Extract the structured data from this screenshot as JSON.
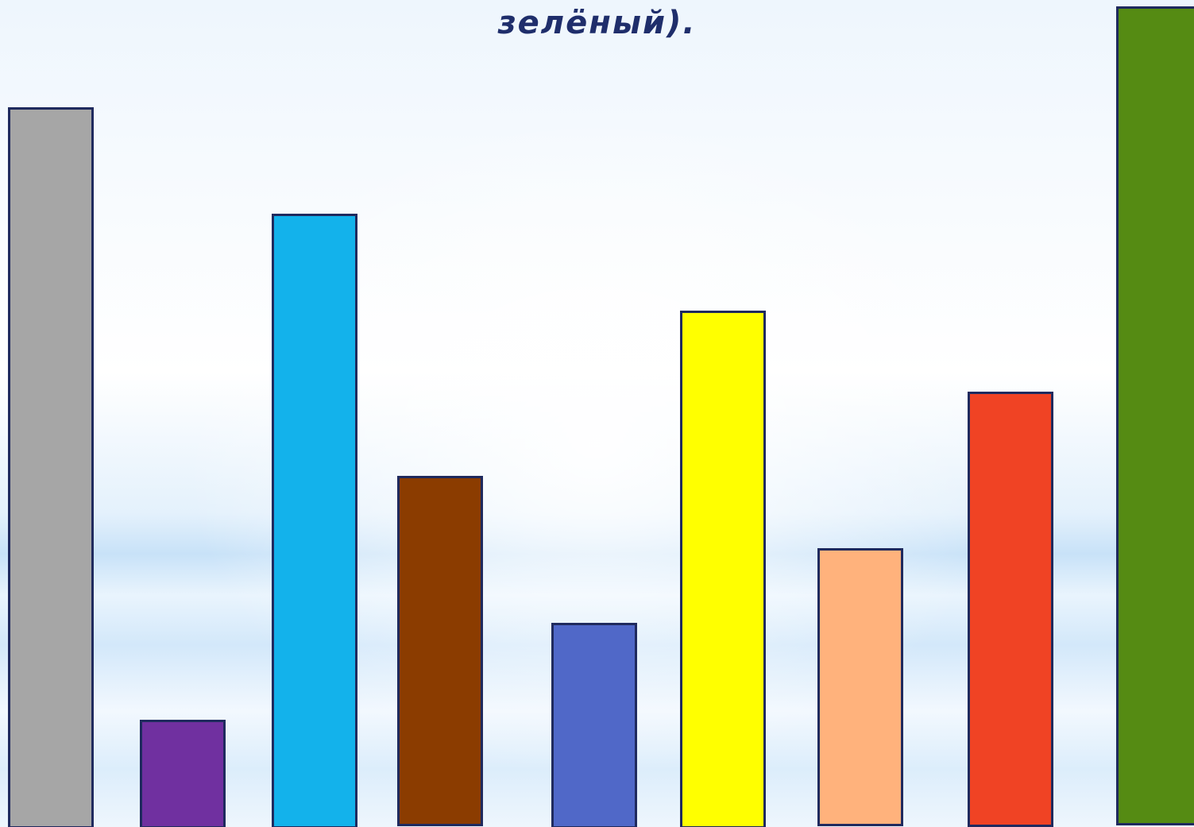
{
  "slide": {
    "title": "зелёный)."
  },
  "bars": [
    {
      "color": "#a6a6a6",
      "value": 0.86
    },
    {
      "color": "#7030a0",
      "value": 0.13
    },
    {
      "color": "#13b2eb",
      "value": 0.73
    },
    {
      "color": "#8b3c00",
      "value": 0.43
    },
    {
      "color": "#5068c8",
      "value": 0.25
    },
    {
      "color": "#ffff00",
      "value": 0.62
    },
    {
      "color": "#ffb27c",
      "value": 0.34
    },
    {
      "color": "#f04324",
      "value": 0.52
    },
    {
      "color": "#558b13",
      "value": 1.0
    }
  ]
}
